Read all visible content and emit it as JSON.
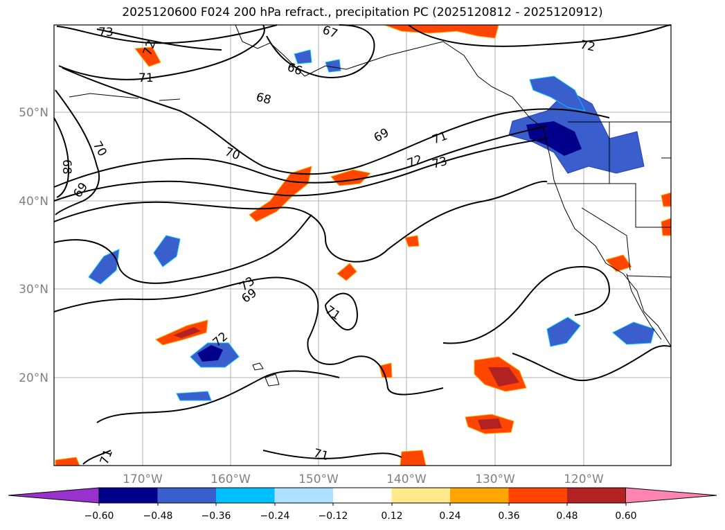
{
  "title": "2025120600 F024 200 hPa refract., precipitation PC (2025120812 - 2025120912)",
  "axes": {
    "longitude_labels": [
      "170°W",
      "160°W",
      "150°W",
      "140°W",
      "130°W",
      "120°W"
    ],
    "latitude_labels": [
      "50°N",
      "40°N",
      "30°N",
      "20°N"
    ]
  },
  "colorbar": {
    "labels": [
      "−0.60",
      "−0.48",
      "−0.36",
      "−0.24",
      "−0.12",
      "0.12",
      "0.24",
      "0.36",
      "0.48",
      "0.60"
    ],
    "colors": [
      "#9932cc",
      "#00008b",
      "#3a5fcd",
      "#00bfff",
      "#b0e0ff",
      "#ffffff",
      "#ffe98c",
      "#ffa500",
      "#ff4500",
      "#b22222",
      "#ff85b0"
    ]
  },
  "contour_labels": [
    "73",
    "72",
    "67",
    "72",
    "71",
    "66",
    "68",
    "70",
    "69",
    "71",
    "72",
    "73",
    "69",
    "70",
    "68",
    "69",
    "73",
    "71",
    "72",
    "71",
    "71"
  ],
  "colors": {
    "gridline": "#b0b0b0",
    "contour": "#000000",
    "coastline": "#000000",
    "frame": "#000000",
    "tick_text": "#808080"
  }
}
